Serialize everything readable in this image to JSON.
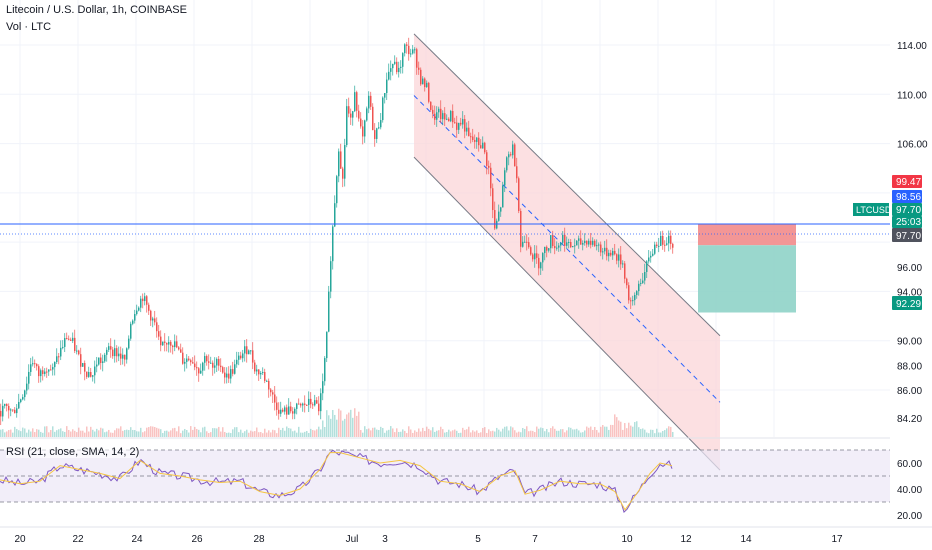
{
  "header": {
    "title": "Litecoin / U.S. Dollar, 1h, COINBASE",
    "volume_label": "Vol · LTC"
  },
  "rsi": {
    "label": "RSI (21, close, SMA, 14, 2)",
    "ticks": [
      "60.00",
      "40.00",
      "20.00"
    ]
  },
  "colors": {
    "up": "#26a69a",
    "down": "#ef5350",
    "channel_fill": "#fbd5d8",
    "channel_line": "#787b86",
    "midline": "#2962ff",
    "price_line": "#2962ff",
    "rsi_line": "#7e57c2",
    "rsi_sma": "#f5c542",
    "rsi_band": "#ede7f6",
    "stop_zone": "#f28b8b",
    "target_zone": "#8fd3c8"
  },
  "chart_data": {
    "type": "candlestick",
    "symbol": "LTCUSD",
    "ylim": [
      82.6,
      116.2
    ],
    "y_ticks": [
      "114.00",
      "110.00",
      "106.00",
      "96.00",
      "94.00",
      "90.00",
      "88.00",
      "86.00",
      "84.20"
    ],
    "x_ticks": [
      "20",
      "22",
      "24",
      "26",
      "28",
      "Jul",
      "3",
      "5",
      "7",
      "10",
      "12",
      "14",
      "17"
    ],
    "price_labels": {
      "symbol": "LTCUSD",
      "stop": "99.47",
      "entry": "98.56",
      "last": "97.70",
      "countdown": "25:03",
      "line": "97.70",
      "target": "92.29"
    },
    "path_points": [
      [
        0,
        84.3
      ],
      [
        6,
        84.6
      ],
      [
        12,
        84.2
      ],
      [
        18,
        85.0
      ],
      [
        25,
        86.3
      ],
      [
        31,
        88.6
      ],
      [
        38,
        87.2
      ],
      [
        45,
        88.0
      ],
      [
        52,
        87.6
      ],
      [
        58,
        88.9
      ],
      [
        66,
        90.3
      ],
      [
        72,
        89.8
      ],
      [
        78,
        88.6
      ],
      [
        86,
        87.5
      ],
      [
        92,
        87.2
      ],
      [
        97,
        88.5
      ],
      [
        103,
        88.2
      ],
      [
        108,
        89.7
      ],
      [
        112,
        89.2
      ],
      [
        118,
        88.9
      ],
      [
        125,
        88.3
      ],
      [
        130,
        91.5
      ],
      [
        136,
        92.8
      ],
      [
        142,
        93.6
      ],
      [
        148,
        92.4
      ],
      [
        154,
        91.3
      ],
      [
        160,
        89.3
      ],
      [
        168,
        90.1
      ],
      [
        175,
        89.6
      ],
      [
        182,
        88.4
      ],
      [
        190,
        88.6
      ],
      [
        198,
        87.6
      ],
      [
        205,
        88.8
      ],
      [
        212,
        87.6
      ],
      [
        218,
        88.4
      ],
      [
        225,
        87.0
      ],
      [
        232,
        87.6
      ],
      [
        240,
        88.8
      ],
      [
        248,
        89.5
      ],
      [
        255,
        87.6
      ],
      [
        262,
        87.3
      ],
      [
        268,
        86.3
      ],
      [
        274,
        85.0
      ],
      [
        280,
        84.2
      ],
      [
        288,
        84.3
      ],
      [
        296,
        84.5
      ],
      [
        304,
        84.8
      ],
      [
        312,
        85.0
      ],
      [
        318,
        84.5
      ],
      [
        322,
        86.4
      ],
      [
        326,
        90.3
      ],
      [
        330,
        96.9
      ],
      [
        334,
        101.4
      ],
      [
        338,
        105.8
      ],
      [
        342,
        103.0
      ],
      [
        346,
        109.0
      ],
      [
        350,
        107.7
      ],
      [
        354,
        110.4
      ],
      [
        358,
        107.8
      ],
      [
        362,
        106.3
      ],
      [
        368,
        109.8
      ],
      [
        374,
        106.3
      ],
      [
        380,
        108.3
      ],
      [
        386,
        111.4
      ],
      [
        392,
        112.5
      ],
      [
        398,
        111.8
      ],
      [
        404,
        113.8
      ],
      [
        410,
        113.4
      ],
      [
        414,
        113.3
      ],
      [
        420,
        111.2
      ],
      [
        426,
        110.5
      ],
      [
        432,
        108.1
      ],
      [
        438,
        108.4
      ],
      [
        444,
        107.9
      ],
      [
        450,
        108.3
      ],
      [
        456,
        107.4
      ],
      [
        462,
        107.8
      ],
      [
        468,
        106.4
      ],
      [
        476,
        106.1
      ],
      [
        482,
        105.8
      ],
      [
        488,
        103.9
      ],
      [
        494,
        98.9
      ],
      [
        500,
        101.0
      ],
      [
        506,
        104.8
      ],
      [
        512,
        105.6
      ],
      [
        516,
        103.6
      ],
      [
        520,
        97.7
      ],
      [
        526,
        98.4
      ],
      [
        532,
        96.9
      ],
      [
        538,
        96.3
      ],
      [
        544,
        97.3
      ],
      [
        550,
        98.2
      ],
      [
        556,
        97.6
      ],
      [
        562,
        98.4
      ],
      [
        568,
        97.6
      ],
      [
        574,
        97.8
      ],
      [
        580,
        97.9
      ],
      [
        586,
        98.2
      ],
      [
        592,
        97.9
      ],
      [
        598,
        97.7
      ],
      [
        604,
        97.1
      ],
      [
        610,
        97.3
      ],
      [
        616,
        96.8
      ],
      [
        622,
        96.3
      ],
      [
        628,
        93.5
      ],
      [
        632,
        92.9
      ],
      [
        638,
        94.6
      ],
      [
        644,
        95.5
      ],
      [
        650,
        97.0
      ],
      [
        656,
        98.0
      ],
      [
        662,
        98.1
      ],
      [
        668,
        98.4
      ],
      [
        672,
        97.9
      ]
    ],
    "channel": {
      "upper": [
        [
          414,
          114.9
        ],
        [
          720,
          90.4
        ]
      ],
      "lower": [
        [
          414,
          104.9
        ],
        [
          720,
          79.5
        ]
      ],
      "mid": [
        [
          414,
          109.9
        ],
        [
          720,
          85.0
        ]
      ]
    },
    "position": {
      "stop_price": 99.47,
      "entry_price": 98.56,
      "target_price": 92.29,
      "current_price": 97.7
    },
    "rsi_series": [
      [
        0,
        47
      ],
      [
        20,
        44
      ],
      [
        40,
        46
      ],
      [
        60,
        58
      ],
      [
        80,
        55
      ],
      [
        100,
        52
      ],
      [
        120,
        48
      ],
      [
        140,
        62
      ],
      [
        160,
        52
      ],
      [
        180,
        50
      ],
      [
        200,
        47
      ],
      [
        220,
        45
      ],
      [
        240,
        46
      ],
      [
        260,
        38
      ],
      [
        280,
        35
      ],
      [
        300,
        40
      ],
      [
        320,
        55
      ],
      [
        330,
        68
      ],
      [
        340,
        68
      ],
      [
        360,
        64
      ],
      [
        380,
        60
      ],
      [
        400,
        62
      ],
      [
        420,
        58
      ],
      [
        440,
        46
      ],
      [
        460,
        44
      ],
      [
        480,
        38
      ],
      [
        500,
        50
      ],
      [
        515,
        54
      ],
      [
        525,
        36
      ],
      [
        540,
        39
      ],
      [
        560,
        46
      ],
      [
        580,
        44
      ],
      [
        600,
        44
      ],
      [
        615,
        38
      ],
      [
        625,
        24
      ],
      [
        640,
        40
      ],
      [
        650,
        52
      ],
      [
        660,
        60
      ],
      [
        672,
        58
      ]
    ],
    "rsi_levels": [
      70,
      50,
      30
    ]
  }
}
